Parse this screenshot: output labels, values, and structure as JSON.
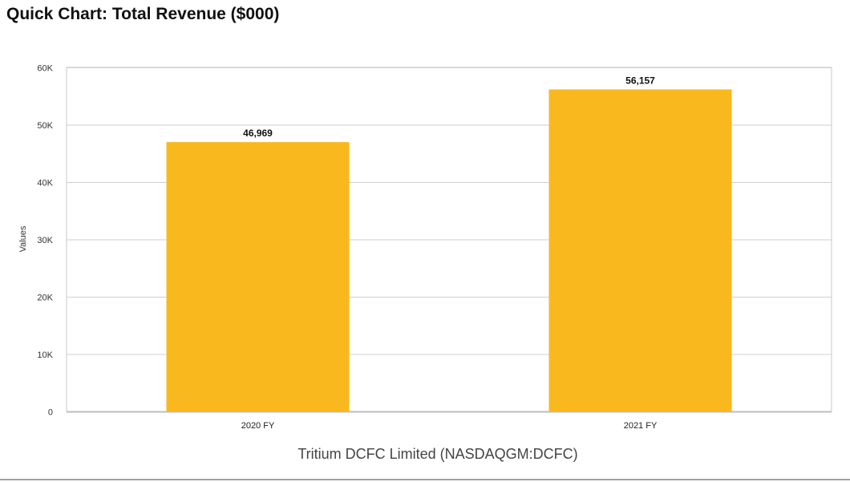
{
  "header": {
    "title": "Quick Chart: Total Revenue ($000)"
  },
  "chart_data": {
    "type": "bar",
    "title": "Quick Chart: Total Revenue ($000)",
    "categories": [
      "2020 FY",
      "2021 FY"
    ],
    "values": [
      46969,
      56157
    ],
    "data_labels": [
      "46,969",
      "56,157"
    ],
    "xlabel": "Tritium DCFC Limited (NASDAQGM:DCFC)",
    "ylabel": "Values",
    "ylim": [
      0,
      60000
    ],
    "yticks": [
      0,
      10000,
      20000,
      30000,
      40000,
      50000,
      60000
    ],
    "ytick_labels": [
      "0",
      "10K",
      "20K",
      "30K",
      "40K",
      "50K",
      "60K"
    ],
    "grid": true,
    "bar_color": "#F9B81E"
  }
}
